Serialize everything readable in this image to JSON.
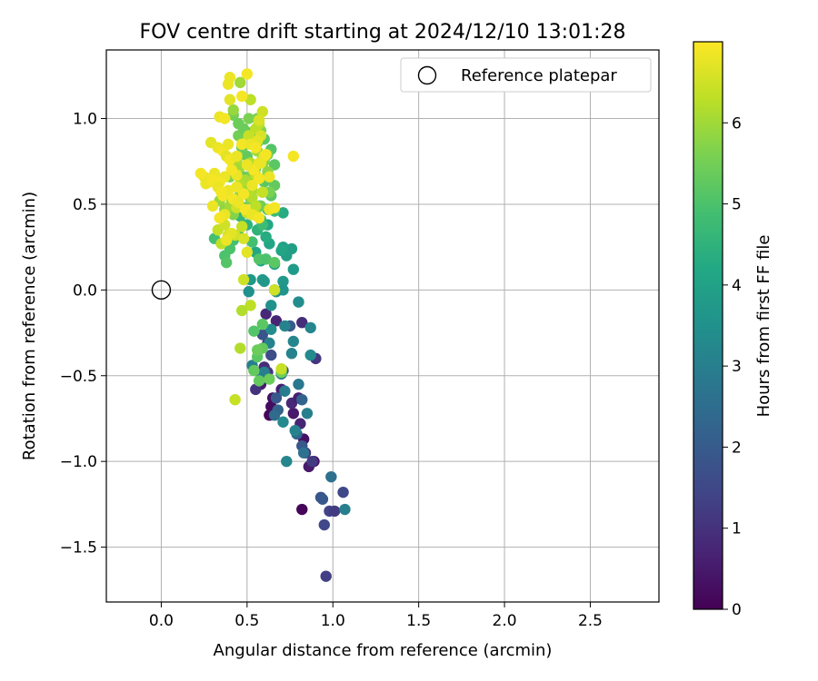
{
  "chart_data": {
    "type": "scatter",
    "title": "FOV centre drift starting at 2024/12/10 13:01:28",
    "xlabel": "Angular distance from reference (arcmin)",
    "ylabel": "Rotation from reference (arcmin)",
    "xlim": [
      -0.32,
      2.9
    ],
    "ylim": [
      -1.82,
      1.4
    ],
    "xticks": [
      0.0,
      0.5,
      1.0,
      1.5,
      2.0,
      2.5
    ],
    "xtick_labels": [
      "0.0",
      "0.5",
      "1.0",
      "1.5",
      "2.0",
      "2.5"
    ],
    "yticks": [
      -1.5,
      -1.0,
      -0.5,
      0.0,
      0.5,
      1.0
    ],
    "ytick_labels": [
      "−1.5",
      "−1.0",
      "−0.5",
      "0.0",
      "0.5",
      "1.0"
    ],
    "grid": true,
    "legend": {
      "placement": "top-right",
      "entries": [
        "Reference platepar"
      ]
    },
    "reference": {
      "x": 0.0,
      "y": 0.0
    },
    "colorbar": {
      "label": "Hours from first FF file",
      "range": [
        0,
        7
      ],
      "ticks": [
        0,
        1,
        2,
        3,
        4,
        5,
        6
      ],
      "tick_labels": [
        "0",
        "1",
        "2",
        "3",
        "4",
        "5",
        "6"
      ],
      "colormap": "viridis"
    },
    "points": [
      [
        0.63,
        -0.73,
        0.1
      ],
      [
        0.65,
        -0.63,
        0.3
      ],
      [
        0.82,
        -1.28,
        0.1
      ],
      [
        0.89,
        -1.0,
        0.3
      ],
      [
        0.64,
        -0.68,
        0.2
      ],
      [
        0.58,
        -0.55,
        0.5
      ],
      [
        0.7,
        -0.58,
        0.6
      ],
      [
        0.77,
        -0.72,
        0.5
      ],
      [
        0.83,
        -0.87,
        0.3
      ],
      [
        0.86,
        -1.03,
        0.5
      ],
      [
        0.76,
        -0.66,
        0.8
      ],
      [
        0.8,
        -0.63,
        0.6
      ],
      [
        0.81,
        -0.78,
        0.7
      ],
      [
        0.84,
        -0.95,
        1.0
      ],
      [
        0.88,
        -1.0,
        1.2
      ],
      [
        0.82,
        -0.19,
        0.9
      ],
      [
        0.61,
        -0.14,
        0.8
      ],
      [
        0.67,
        -0.18,
        0.7
      ],
      [
        0.62,
        -0.31,
        0.8
      ],
      [
        0.6,
        -0.45,
        0.9
      ],
      [
        0.55,
        -0.58,
        1.0
      ],
      [
        0.62,
        -0.48,
        1.1
      ],
      [
        0.9,
        -0.4,
        1.1
      ],
      [
        0.96,
        -1.67,
        1.3
      ],
      [
        0.98,
        -1.29,
        1.4
      ],
      [
        1.01,
        -1.29,
        1.2
      ],
      [
        0.95,
        -1.37,
        1.5
      ],
      [
        1.06,
        -1.18,
        1.5
      ],
      [
        0.93,
        -1.21,
        1.8
      ],
      [
        0.94,
        -1.22,
        1.9
      ],
      [
        0.82,
        -0.91,
        1.9
      ],
      [
        0.71,
        -0.47,
        1.7
      ],
      [
        0.64,
        -0.38,
        1.6
      ],
      [
        0.59,
        -0.26,
        1.8
      ],
      [
        0.67,
        -0.63,
        1.9
      ],
      [
        0.75,
        -0.21,
        2.0
      ],
      [
        0.82,
        -0.64,
        2.2
      ],
      [
        0.68,
        -0.7,
        2.2
      ],
      [
        0.79,
        -0.84,
        2.3
      ],
      [
        0.66,
        -0.73,
        2.4
      ],
      [
        0.99,
        -1.09,
        2.6
      ],
      [
        0.83,
        -0.95,
        2.6
      ],
      [
        0.58,
        -0.52,
        2.7
      ],
      [
        0.8,
        -0.55,
        2.8
      ],
      [
        0.72,
        -0.59,
        2.9
      ],
      [
        0.7,
        -0.49,
        3.0
      ],
      [
        0.6,
        -0.48,
        3.0
      ],
      [
        0.53,
        -0.44,
        3.0
      ],
      [
        0.63,
        -0.31,
        3.1
      ],
      [
        0.76,
        -0.37,
        3.1
      ],
      [
        0.72,
        -0.21,
        3.1
      ],
      [
        0.77,
        -0.3,
        3.2
      ],
      [
        0.87,
        -0.22,
        3.2
      ],
      [
        0.87,
        -0.38,
        3.3
      ],
      [
        0.78,
        -0.82,
        3.1
      ],
      [
        0.73,
        -1.0,
        3.2
      ],
      [
        0.85,
        -0.72,
        3.0
      ],
      [
        0.71,
        -0.77,
        3.3
      ],
      [
        1.07,
        -1.28,
        3.0
      ],
      [
        0.8,
        -0.07,
        3.4
      ],
      [
        0.64,
        -0.23,
        3.4
      ],
      [
        0.64,
        -0.09,
        3.5
      ],
      [
        0.51,
        -0.01,
        3.5
      ],
      [
        0.67,
        -0.01,
        3.5
      ],
      [
        0.66,
        0.0,
        3.6
      ],
      [
        0.71,
        0.05,
        3.7
      ],
      [
        0.71,
        0.0,
        3.6
      ],
      [
        0.52,
        0.06,
        3.7
      ],
      [
        0.59,
        0.06,
        3.8
      ],
      [
        0.6,
        0.05,
        3.7
      ],
      [
        0.77,
        0.12,
        3.8
      ],
      [
        0.73,
        0.2,
        3.9
      ],
      [
        0.76,
        0.24,
        3.9
      ],
      [
        0.71,
        0.25,
        4.0
      ],
      [
        0.7,
        0.23,
        4.1
      ],
      [
        0.66,
        0.15,
        4.0
      ],
      [
        0.63,
        0.27,
        4.1
      ],
      [
        0.58,
        0.17,
        4.2
      ],
      [
        0.55,
        0.22,
        4.2
      ],
      [
        0.61,
        0.31,
        4.3
      ],
      [
        0.62,
        0.38,
        4.2
      ],
      [
        0.71,
        0.45,
        4.3
      ],
      [
        0.58,
        0.41,
        4.4
      ],
      [
        0.53,
        0.44,
        4.4
      ],
      [
        0.56,
        0.35,
        4.5
      ],
      [
        0.5,
        0.38,
        4.5
      ],
      [
        0.46,
        0.43,
        4.6
      ],
      [
        0.48,
        0.48,
        4.6
      ],
      [
        0.52,
        0.55,
        4.7
      ],
      [
        0.57,
        0.49,
        4.7
      ],
      [
        0.62,
        0.47,
        4.6
      ],
      [
        0.66,
        0.46,
        4.8
      ],
      [
        0.59,
        0.38,
        4.8
      ],
      [
        0.53,
        0.28,
        4.9
      ],
      [
        0.45,
        0.32,
        4.8
      ],
      [
        0.42,
        0.29,
        4.9
      ],
      [
        0.37,
        0.2,
        5.0
      ],
      [
        0.4,
        0.24,
        5.0
      ],
      [
        0.31,
        0.3,
        4.9
      ],
      [
        0.38,
        0.16,
        5.1
      ],
      [
        0.57,
        0.18,
        5.1
      ],
      [
        0.61,
        0.18,
        5.0
      ],
      [
        0.66,
        0.16,
        5.2
      ],
      [
        0.59,
        -0.2,
        5.2
      ],
      [
        0.54,
        -0.24,
        5.1
      ],
      [
        0.59,
        -0.34,
        5.3
      ],
      [
        0.56,
        -0.39,
        5.2
      ],
      [
        0.54,
        -0.47,
        5.3
      ],
      [
        0.57,
        -0.53,
        5.3
      ],
      [
        0.63,
        -0.52,
        5.4
      ],
      [
        0.7,
        -0.48,
        5.5
      ],
      [
        0.56,
        -0.35,
        5.4
      ],
      [
        0.66,
        0.61,
        5.3
      ],
      [
        0.64,
        0.55,
        5.2
      ],
      [
        0.6,
        0.63,
        5.2
      ],
      [
        0.55,
        0.71,
        5.4
      ],
      [
        0.5,
        0.78,
        5.3
      ],
      [
        0.47,
        0.83,
        5.4
      ],
      [
        0.45,
        0.9,
        5.5
      ],
      [
        0.48,
        0.94,
        5.4
      ],
      [
        0.53,
        0.92,
        5.3
      ],
      [
        0.56,
        0.86,
        5.3
      ],
      [
        0.6,
        0.88,
        5.2
      ],
      [
        0.64,
        0.82,
        5.1
      ],
      [
        0.66,
        0.73,
        5.2
      ],
      [
        0.62,
        0.79,
        5.5
      ],
      [
        0.59,
        0.76,
        5.4
      ],
      [
        0.53,
        0.67,
        5.5
      ],
      [
        0.48,
        0.66,
        5.4
      ],
      [
        0.44,
        0.6,
        5.5
      ],
      [
        0.4,
        0.66,
        5.6
      ],
      [
        0.42,
        1.02,
        5.5
      ],
      [
        0.45,
        0.97,
        5.4
      ],
      [
        0.51,
        1.0,
        5.6
      ],
      [
        0.56,
        1.0,
        5.6
      ],
      [
        0.58,
        0.93,
        5.7
      ],
      [
        0.6,
        0.75,
        5.7
      ],
      [
        0.62,
        0.69,
        5.8
      ],
      [
        0.63,
        0.57,
        5.6
      ],
      [
        0.58,
        0.49,
        5.5
      ],
      [
        0.52,
        0.53,
        5.7
      ],
      [
        0.46,
        0.56,
        5.6
      ],
      [
        0.43,
        0.51,
        5.8
      ],
      [
        0.42,
        0.44,
        5.7
      ],
      [
        0.37,
        0.47,
        5.8
      ],
      [
        0.34,
        0.52,
        5.9
      ],
      [
        0.39,
        0.55,
        5.9
      ],
      [
        0.4,
        0.49,
        6.0
      ],
      [
        0.46,
        1.21,
        6.0
      ],
      [
        0.42,
        1.05,
        5.9
      ],
      [
        0.46,
        0.72,
        6.0
      ],
      [
        0.5,
        0.62,
        5.9
      ],
      [
        0.53,
        0.58,
        6.1
      ],
      [
        0.56,
        0.81,
        6.0
      ],
      [
        0.54,
        0.69,
        6.2
      ],
      [
        0.49,
        0.64,
        6.1
      ],
      [
        0.46,
        0.62,
        6.2
      ],
      [
        0.42,
        0.72,
        6.0
      ],
      [
        0.44,
        0.76,
        6.1
      ],
      [
        0.52,
        0.74,
        6.2
      ],
      [
        0.55,
        0.94,
        6.3
      ],
      [
        0.57,
        0.97,
        6.3
      ],
      [
        0.53,
        0.54,
        6.2
      ],
      [
        0.52,
        1.11,
        6.3
      ],
      [
        0.51,
        0.9,
        6.4
      ],
      [
        0.55,
        0.67,
        6.3
      ],
      [
        0.59,
        0.57,
        6.4
      ],
      [
        0.55,
        0.49,
        6.3
      ],
      [
        0.56,
        0.43,
        6.4
      ],
      [
        0.5,
        0.45,
        6.5
      ],
      [
        0.47,
        0.37,
        6.4
      ],
      [
        0.44,
        0.48,
        6.5
      ],
      [
        0.43,
        0.32,
        6.5
      ],
      [
        0.35,
        0.27,
        6.3
      ],
      [
        0.33,
        0.35,
        6.4
      ],
      [
        0.37,
        0.38,
        6.5
      ],
      [
        0.39,
        0.32,
        6.6
      ],
      [
        0.41,
        0.33,
        6.7
      ],
      [
        0.48,
        0.3,
        6.6
      ],
      [
        0.5,
        0.22,
        6.7
      ],
      [
        0.46,
        -0.34,
        6.2
      ],
      [
        0.43,
        -0.64,
        6.4
      ],
      [
        0.66,
        0.0,
        6.5
      ],
      [
        0.48,
        0.06,
        6.5
      ],
      [
        0.52,
        -0.09,
        6.3
      ],
      [
        0.47,
        -0.12,
        6.2
      ],
      [
        0.7,
        -0.46,
        6.4
      ],
      [
        0.59,
        1.04,
        6.5
      ],
      [
        0.57,
        0.99,
        6.6
      ],
      [
        0.58,
        0.9,
        6.6
      ],
      [
        0.56,
        0.87,
        6.7
      ],
      [
        0.6,
        0.78,
        6.8
      ],
      [
        0.57,
        0.74,
        6.8
      ],
      [
        0.54,
        0.7,
        6.9
      ],
      [
        0.5,
        0.73,
        6.8
      ],
      [
        0.4,
        1.24,
        6.8
      ],
      [
        0.47,
        1.13,
        6.9
      ],
      [
        0.39,
        1.2,
        6.8
      ],
      [
        0.5,
        1.26,
        6.9
      ],
      [
        0.4,
        1.11,
        6.7
      ],
      [
        0.34,
        1.01,
        6.8
      ],
      [
        0.37,
        1.0,
        6.9
      ],
      [
        0.29,
        0.86,
        6.7
      ],
      [
        0.33,
        0.83,
        6.8
      ],
      [
        0.36,
        0.81,
        6.9
      ],
      [
        0.39,
        0.85,
        6.8
      ],
      [
        0.38,
        0.78,
        6.7
      ],
      [
        0.4,
        0.76,
        6.9
      ],
      [
        0.44,
        0.78,
        6.8
      ],
      [
        0.47,
        0.85,
        6.9
      ],
      [
        0.52,
        0.85,
        6.8
      ],
      [
        0.55,
        0.83,
        6.9
      ],
      [
        0.58,
        0.74,
        6.8
      ],
      [
        0.61,
        0.79,
        6.9
      ],
      [
        0.63,
        0.66,
        6.8
      ],
      [
        0.57,
        0.65,
        6.9
      ],
      [
        0.53,
        0.61,
        6.8
      ],
      [
        0.48,
        0.56,
        6.9
      ],
      [
        0.44,
        0.67,
        6.8
      ],
      [
        0.41,
        0.7,
        6.9
      ],
      [
        0.37,
        0.66,
        6.8
      ],
      [
        0.34,
        0.63,
        6.9
      ],
      [
        0.31,
        0.68,
        6.8
      ],
      [
        0.28,
        0.63,
        6.9
      ],
      [
        0.25,
        0.66,
        6.8
      ],
      [
        0.23,
        0.68,
        6.9
      ],
      [
        0.26,
        0.62,
        6.8
      ],
      [
        0.3,
        0.64,
        6.9
      ],
      [
        0.33,
        0.6,
        6.8
      ],
      [
        0.36,
        0.55,
        6.9
      ],
      [
        0.39,
        0.58,
        6.8
      ],
      [
        0.42,
        0.53,
        6.9
      ],
      [
        0.45,
        0.51,
        6.8
      ],
      [
        0.49,
        0.47,
        6.9
      ],
      [
        0.53,
        0.44,
        6.8
      ],
      [
        0.57,
        0.42,
        6.9
      ],
      [
        0.63,
        0.47,
        6.8
      ],
      [
        0.66,
        0.48,
        6.9
      ],
      [
        0.37,
        0.44,
        6.8
      ],
      [
        0.34,
        0.42,
        6.9
      ],
      [
        0.38,
        0.29,
        6.8
      ],
      [
        0.35,
        0.57,
        6.9
      ],
      [
        0.3,
        0.49,
        6.8
      ],
      [
        0.77,
        0.78,
        6.9
      ],
      [
        0.44,
        0.6,
        6.8
      ]
    ]
  }
}
